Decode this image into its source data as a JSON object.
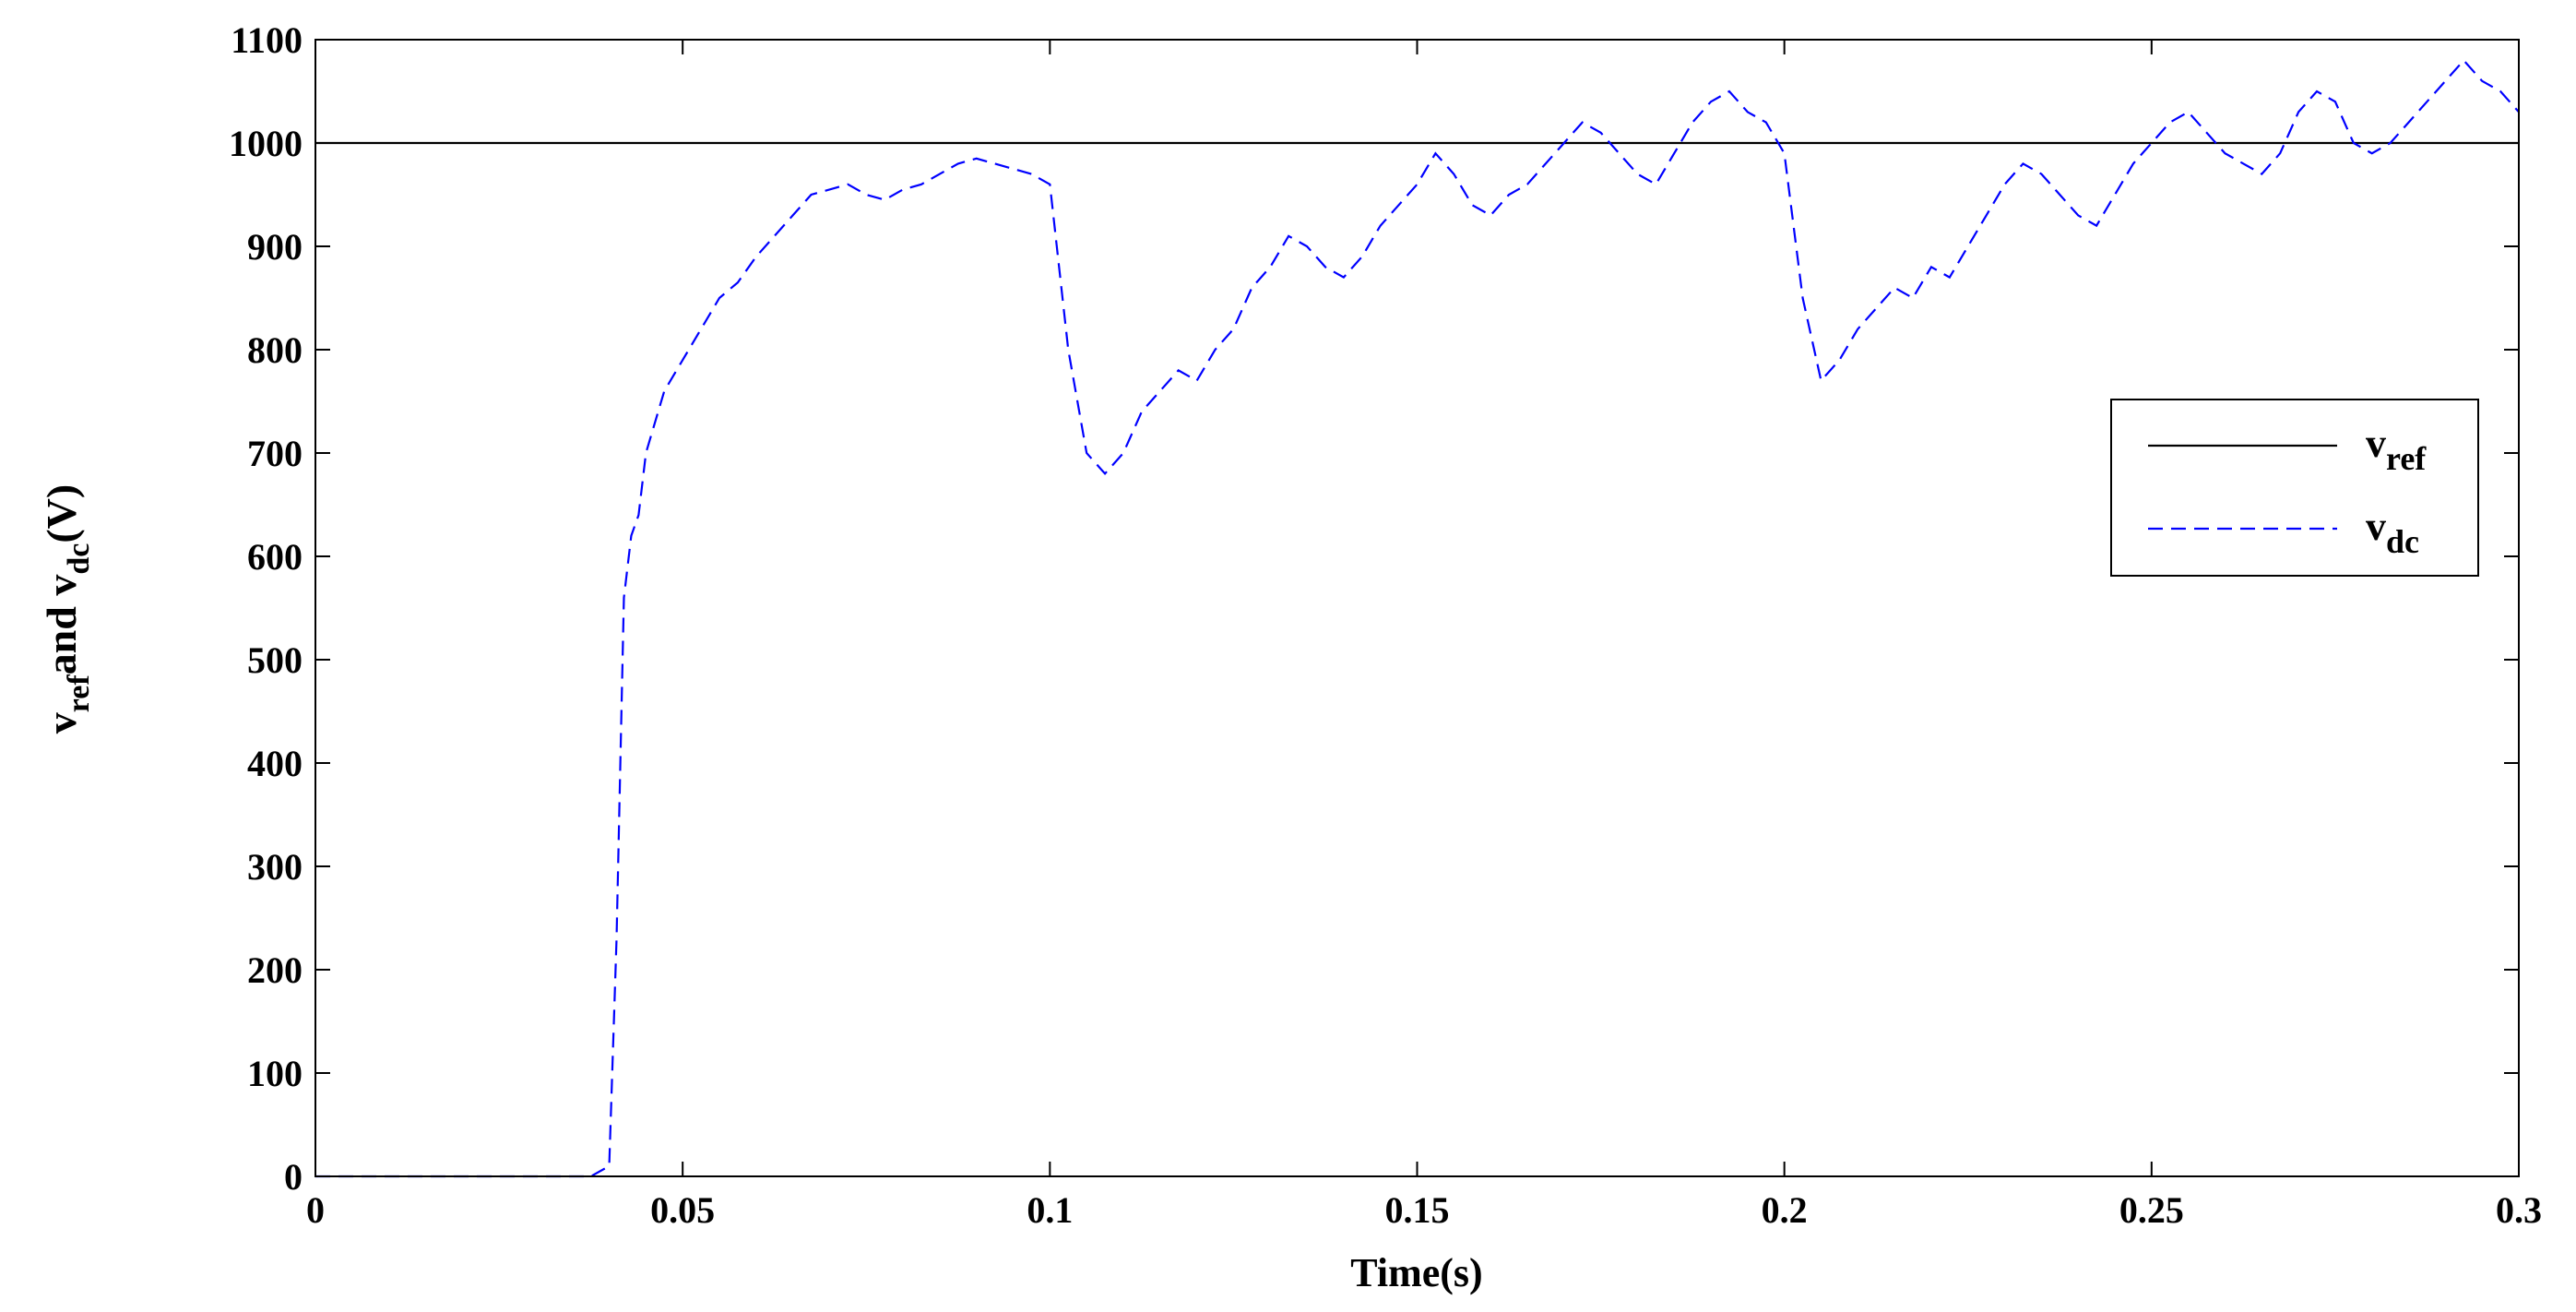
{
  "chart_data": {
    "type": "line",
    "xlabel": "Time(s)",
    "ylabel": [
      "v",
      "ref",
      "and v",
      "dc",
      "(V)"
    ],
    "xlim": [
      0,
      0.3
    ],
    "ylim": [
      0,
      1100
    ],
    "xticks": [
      0,
      0.05,
      0.1,
      0.15,
      0.2,
      0.25,
      0.3
    ],
    "yticks": [
      0,
      100,
      200,
      300,
      400,
      500,
      600,
      700,
      800,
      900,
      1000,
      1100
    ],
    "legend": "right",
    "series": [
      {
        "name": "v",
        "subscript": "ref",
        "color": "#000000",
        "dash": false,
        "x": [
          0,
          0.3
        ],
        "values": [
          1000,
          1000
        ]
      },
      {
        "name": "v",
        "subscript": "dc",
        "color": "#0000ff",
        "dash": true,
        "x": [
          0,
          0.0025,
          0.005,
          0.0075,
          0.01,
          0.0125,
          0.015,
          0.0175,
          0.02,
          0.0225,
          0.025,
          0.0275,
          0.03,
          0.0325,
          0.035,
          0.0375,
          0.04,
          0.041,
          0.042,
          0.043,
          0.044,
          0.045,
          0.0475,
          0.05,
          0.0525,
          0.055,
          0.0575,
          0.06,
          0.0625,
          0.065,
          0.0675,
          0.07,
          0.0725,
          0.075,
          0.0775,
          0.08,
          0.0825,
          0.085,
          0.0875,
          0.09,
          0.0925,
          0.095,
          0.0975,
          0.1,
          0.1025,
          0.105,
          0.1075,
          0.11,
          0.1125,
          0.115,
          0.1175,
          0.12,
          0.1225,
          0.125,
          0.1275,
          0.13,
          0.1325,
          0.135,
          0.1375,
          0.14,
          0.1425,
          0.145,
          0.1475,
          0.15,
          0.1525,
          0.155,
          0.1575,
          0.16,
          0.1625,
          0.165,
          0.1675,
          0.17,
          0.1725,
          0.175,
          0.1775,
          0.18,
          0.1825,
          0.185,
          0.1875,
          0.19,
          0.1925,
          0.195,
          0.1975,
          0.2,
          0.2025,
          0.205,
          0.2075,
          0.21,
          0.2125,
          0.215,
          0.2175,
          0.22,
          0.2225,
          0.225,
          0.2275,
          0.23,
          0.2325,
          0.235,
          0.2375,
          0.24,
          0.2425,
          0.245,
          0.2475,
          0.25,
          0.2525,
          0.255,
          0.2575,
          0.26,
          0.2625,
          0.265,
          0.2675,
          0.27,
          0.2725,
          0.275,
          0.2775,
          0.28,
          0.2825,
          0.285,
          0.2875,
          0.29,
          0.2925,
          0.295,
          0.2975,
          0.3
        ],
        "values": [
          0,
          0,
          0,
          0,
          0,
          0,
          0,
          0,
          0,
          0,
          0,
          0,
          0,
          0,
          0,
          0,
          10,
          230,
          560,
          620,
          640,
          700,
          760,
          790,
          820,
          850,
          865,
          890,
          910,
          930,
          950,
          955,
          960,
          950,
          945,
          955,
          960,
          970,
          980,
          985,
          980,
          975,
          970,
          960,
          800,
          700,
          680,
          700,
          740,
          760,
          780,
          770,
          800,
          820,
          860,
          880,
          910,
          900,
          880,
          870,
          890,
          920,
          940,
          960,
          990,
          970,
          940,
          930,
          950,
          960,
          980,
          1000,
          1020,
          1010,
          990,
          970,
          960,
          990,
          1020,
          1040,
          1050,
          1030,
          1020,
          990,
          850,
          770,
          790,
          820,
          840,
          860,
          850,
          880,
          870,
          900,
          930,
          960,
          980,
          970,
          950,
          930,
          920,
          950,
          980,
          1000,
          1020,
          1030,
          1010,
          990,
          980,
          970,
          990,
          1030,
          1050,
          1040,
          1000,
          990,
          1000,
          1020,
          1040,
          1060,
          1080,
          1060,
          1050,
          1030
        ]
      }
    ]
  }
}
